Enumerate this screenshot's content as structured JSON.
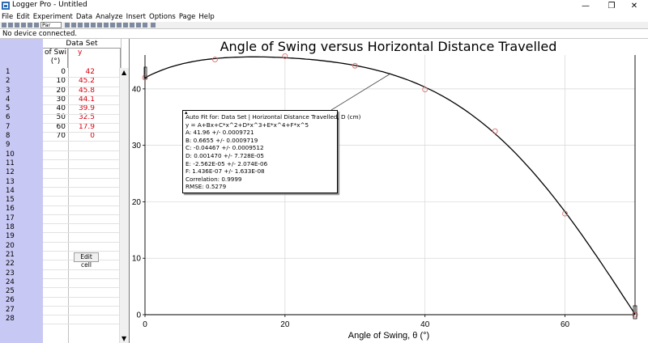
{
  "window": {
    "title": "Logger Pro - Untitled",
    "controls": [
      "—",
      "❐",
      "✕"
    ]
  },
  "menu": [
    "File",
    "Edit",
    "Experiment",
    "Data",
    "Analyze",
    "Insert",
    "Options",
    "Page",
    "Help"
  ],
  "toolbar": {
    "page_selector": "Par"
  },
  "status": "No device connected.",
  "table": {
    "dataset_title": "Data Set",
    "x_header_line1": "of Swi",
    "x_header_line2": "(°)",
    "y_header": "y",
    "row_numbers": [
      "1",
      "2",
      "3",
      "4",
      "5",
      "6",
      "7",
      "8",
      "9",
      "10",
      "11",
      "12",
      "13",
      "14",
      "15",
      "16",
      "17",
      "18",
      "19",
      "20",
      "21",
      "22",
      "23",
      "24",
      "25",
      "26",
      "27",
      "28"
    ],
    "rows": [
      {
        "x": "0",
        "y": "42"
      },
      {
        "x": "10",
        "y": "45.2"
      },
      {
        "x": "20",
        "y": "45.8"
      },
      {
        "x": "30",
        "y": "44.1"
      },
      {
        "x": "40",
        "y": "39.9"
      },
      {
        "x": "50",
        "y": "32.5"
      },
      {
        "x": "60",
        "y": "17.9"
      },
      {
        "x": "70",
        "y": "0"
      }
    ],
    "edit_cell_label": "Edit cell"
  },
  "fit": {
    "lines": [
      "Auto Fit for: Data Set | Horizontal Distance Travelled, D (cm)",
      "y = A+Bx+C*x^2+D*x^3+E*x^4+F*x^5",
      "A: 41.96 +/- 0.0009721",
      "B: 0.6655 +/- 0.0009719",
      "C: -0.04467 +/- 0.0009512",
      "D: 0.001470 +/- 7.728E-05",
      "E: -2.562E-05 +/- 2.074E-06",
      "F: 1.436E-07 +/- 1.633E-08",
      "Correlation: 0.9999",
      "RMSE: 0.5279"
    ]
  },
  "chart_data": {
    "type": "scatter",
    "title": "Angle of Swing versus Horizontal Distance Travelled",
    "xlabel": "Angle of Swing, θ (°)",
    "ylabel": "",
    "xlim": [
      0,
      70
    ],
    "ylim": [
      0,
      46
    ],
    "x_ticks": [
      0,
      20,
      40,
      60
    ],
    "y_ticks": [
      0,
      10,
      20,
      30,
      40
    ],
    "grid": true,
    "points": {
      "x": [
        0,
        10,
        20,
        30,
        40,
        50,
        60,
        70
      ],
      "y": [
        42,
        45.2,
        45.8,
        44.1,
        39.9,
        32.5,
        17.9,
        0
      ]
    },
    "fit_curve": {
      "A": 41.96,
      "B": 0.6655,
      "C": -0.04467,
      "D": 0.00147,
      "E": -2.562e-05,
      "F": 1.436e-07
    },
    "colors": {
      "points": "#d87070",
      "curve": "#000000",
      "grid": "#d6d6d6"
    }
  }
}
